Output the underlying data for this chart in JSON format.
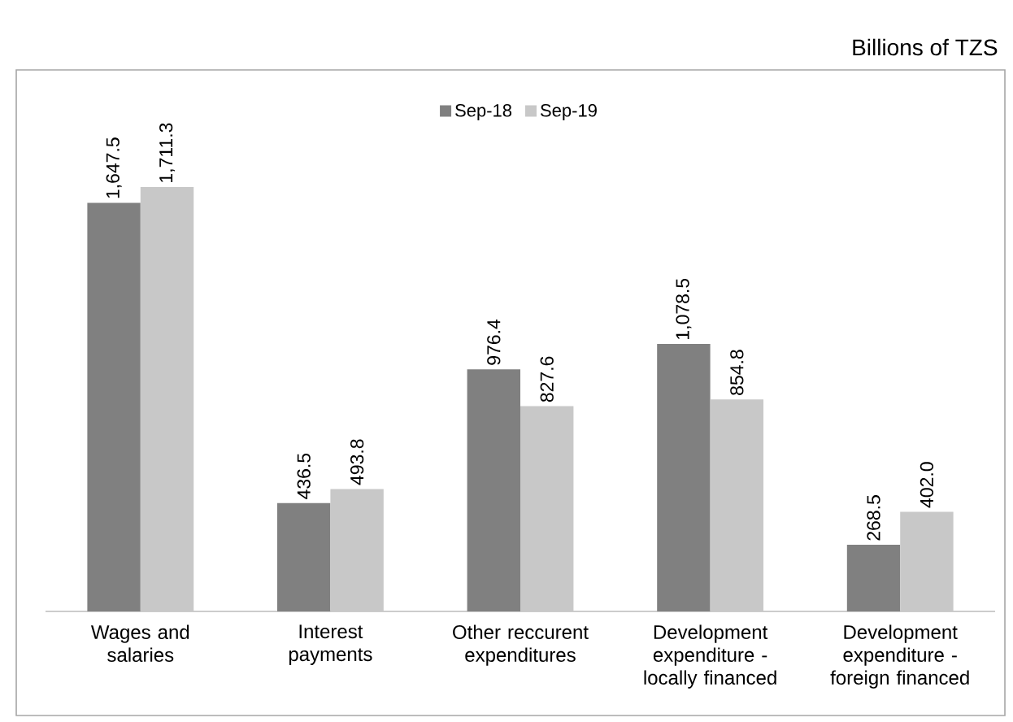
{
  "chart_data": {
    "type": "bar",
    "annotations": [
      "Billions of TZS"
    ],
    "categories": [
      "Wages and salaries",
      "Interest payments",
      "Other reccurent expenditures",
      "Development expenditure - locally financed",
      "Development expenditure - foreign financed"
    ],
    "series": [
      {
        "name": "Sep-18",
        "color": "#808080",
        "values": [
          1647.5,
          436.5,
          976.4,
          1078.5,
          268.5
        ],
        "value_labels": [
          "1,647.5",
          "436.5",
          "976.4",
          "1,078.5",
          "268.5"
        ]
      },
      {
        "name": "Sep-19",
        "color": "#c8c8c8",
        "values": [
          1711.3,
          493.8,
          827.6,
          854.8,
          402.0
        ],
        "value_labels": [
          "1,711.3",
          "493.8",
          "827.6",
          "854.8",
          "402.0"
        ]
      }
    ],
    "legend": "top"
  }
}
